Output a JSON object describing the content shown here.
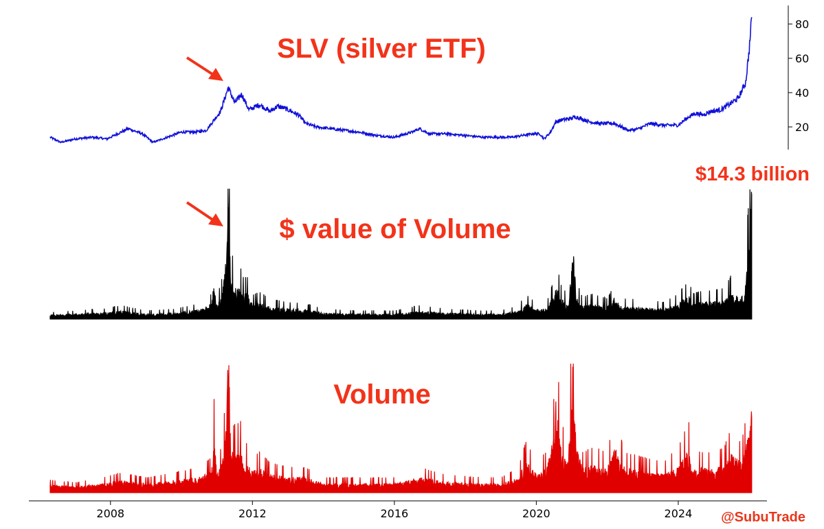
{
  "chart_data": [
    {
      "type": "line",
      "name_key": "price",
      "annotation": "SLV (silver ETF)",
      "ylim": [
        8,
        86
      ],
      "yticks": [
        20,
        40,
        60,
        80
      ],
      "color": "#1010d8",
      "series": [
        {
          "name": "SLV (silver ETF)",
          "x": [
            2006.3,
            2006.6,
            2007.0,
            2007.5,
            2007.9,
            2008.2,
            2008.5,
            2008.9,
            2009.2,
            2009.6,
            2010.0,
            2010.4,
            2010.7,
            2010.95,
            2011.1,
            2011.32,
            2011.5,
            2011.7,
            2011.9,
            2012.2,
            2012.5,
            2012.7,
            2012.9,
            2013.3,
            2013.5,
            2013.8,
            2014.2,
            2014.6,
            2015.0,
            2015.5,
            2016.0,
            2016.5,
            2016.7,
            2017.0,
            2017.5,
            2018.0,
            2018.5,
            2018.9,
            2019.3,
            2019.6,
            2019.9,
            2020.1,
            2020.22,
            2020.4,
            2020.55,
            2020.7,
            2021.0,
            2021.1,
            2021.5,
            2021.8,
            2022.2,
            2022.6,
            2022.9,
            2023.2,
            2023.6,
            2024.0,
            2024.3,
            2024.5,
            2024.7,
            2024.9,
            2025.2,
            2025.5,
            2025.7,
            2025.9,
            2026.0,
            2026.07
          ],
          "y": [
            14,
            11,
            13,
            14,
            13,
            16,
            19,
            16,
            11,
            14,
            17,
            17,
            18,
            25,
            29,
            43,
            34,
            39,
            30,
            33,
            29,
            32,
            31,
            27,
            22,
            20,
            19,
            18,
            17,
            15,
            14,
            17,
            19,
            16,
            16,
            15,
            14,
            14,
            14,
            15,
            16,
            16,
            13,
            17,
            23,
            24,
            25,
            26,
            23,
            22,
            22,
            18,
            19,
            22,
            21,
            21,
            26,
            28,
            27,
            29,
            30,
            34,
            37,
            46,
            65,
            84
          ]
        }
      ]
    },
    {
      "type": "area",
      "name_key": "dollar_volume",
      "annotation": "$ value of Volume",
      "peak_label": "$14.3 billion",
      "ylim": [
        0,
        15
      ],
      "color": "#000000",
      "series": [
        {
          "name": "$ value of Volume",
          "x": [
            2006.3,
            2007.0,
            2007.8,
            2008.3,
            2009.0,
            2009.8,
            2010.5,
            2010.85,
            2010.92,
            2011.0,
            2011.15,
            2011.25,
            2011.32,
            2011.4,
            2011.55,
            2011.65,
            2011.75,
            2011.85,
            2012.0,
            2012.2,
            2012.5,
            2013.0,
            2013.5,
            2014.0,
            2015.0,
            2016.0,
            2016.7,
            2017.5,
            2018.5,
            2019.0,
            2019.5,
            2019.7,
            2020.0,
            2020.3,
            2020.5,
            2020.55,
            2020.7,
            2020.9,
            2021.05,
            2021.12,
            2021.3,
            2021.6,
            2022.0,
            2022.2,
            2022.5,
            2023.0,
            2023.6,
            2024.0,
            2024.3,
            2024.4,
            2024.6,
            2025.0,
            2025.3,
            2025.5,
            2025.65,
            2025.75,
            2025.85,
            2025.95,
            2026.02,
            2026.07
          ],
          "y": [
            0.4,
            0.5,
            0.6,
            0.8,
            0.5,
            0.6,
            0.9,
            1.5,
            3.6,
            1.2,
            2.5,
            5.5,
            13.6,
            4.0,
            2.8,
            3.2,
            2.4,
            2.5,
            1.4,
            1.6,
            1.2,
            1.0,
            0.9,
            0.6,
            0.5,
            0.5,
            0.8,
            0.6,
            0.5,
            0.5,
            0.8,
            1.5,
            0.9,
            1.0,
            2.4,
            3.4,
            2.0,
            1.4,
            6.8,
            2.3,
            1.3,
            1.5,
            1.2,
            2.0,
            1.2,
            1.1,
            1.0,
            1.5,
            2.3,
            1.5,
            1.6,
            1.7,
            1.8,
            2.6,
            2.2,
            2.0,
            2.4,
            6.0,
            7.5,
            14.3
          ]
        }
      ]
    },
    {
      "type": "area",
      "name_key": "volume",
      "annotation": "Volume",
      "ylim": [
        0,
        100
      ],
      "color": "#e00000",
      "xlim": [
        2005.7,
        2026.5
      ],
      "xticks": [
        2008,
        2012,
        2016,
        2020,
        2024
      ],
      "series": [
        {
          "name": "Volume",
          "x": [
            2006.3,
            2007.0,
            2007.8,
            2008.3,
            2009.0,
            2009.8,
            2010.5,
            2010.85,
            2010.92,
            2011.0,
            2011.15,
            2011.25,
            2011.32,
            2011.4,
            2011.55,
            2011.65,
            2011.75,
            2011.85,
            2012.0,
            2012.2,
            2012.5,
            2013.0,
            2013.5,
            2014.0,
            2015.0,
            2016.0,
            2016.7,
            2017.5,
            2018.5,
            2019.0,
            2019.5,
            2019.7,
            2020.0,
            2020.3,
            2020.5,
            2020.55,
            2020.7,
            2020.9,
            2021.05,
            2021.12,
            2021.3,
            2021.6,
            2022.0,
            2022.2,
            2022.5,
            2023.0,
            2023.6,
            2024.0,
            2024.3,
            2024.4,
            2024.6,
            2025.0,
            2025.3,
            2025.5,
            2025.65,
            2025.75,
            2025.85,
            2025.95,
            2026.02,
            2026.07
          ],
          "y": [
            5,
            4,
            6,
            8,
            6,
            8,
            10,
            14,
            37,
            12,
            20,
            40,
            98,
            28,
            26,
            30,
            18,
            20,
            14,
            16,
            12,
            10,
            10,
            6,
            6,
            6,
            10,
            7,
            6,
            6,
            10,
            20,
            13,
            16,
            38,
            60,
            28,
            20,
            96,
            30,
            16,
            18,
            16,
            30,
            16,
            14,
            12,
            18,
            28,
            14,
            16,
            16,
            18,
            26,
            22,
            20,
            24,
            35,
            40,
            58
          ]
        }
      ]
    }
  ],
  "watermark": "@SubuTrade",
  "colors": {
    "annotation": "#f2331a",
    "arrow": "#f2331a",
    "axis": "#000000"
  }
}
